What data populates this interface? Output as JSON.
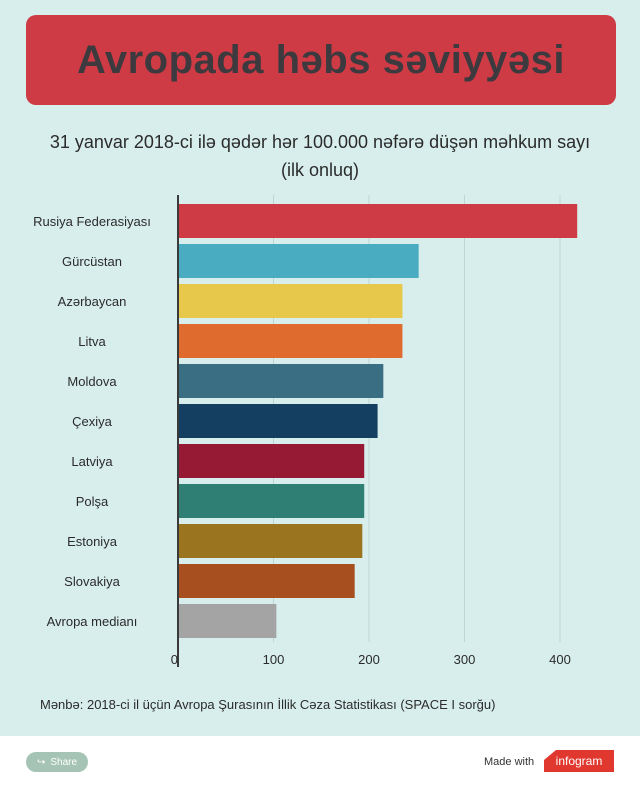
{
  "header": {
    "title": "Avropada həbs səviyyəsi"
  },
  "subtitle": {
    "line1": "31 yanvar 2018-ci ilə qədər hər 100.000 nəfərə düşən məhkum sayı",
    "line2": "(ilk onluq)"
  },
  "chart_data": {
    "type": "bar",
    "orientation": "horizontal",
    "categories": [
      "Rusiya Federasiyası",
      "Gürcüstan",
      "Azərbaycan",
      "Litva",
      "Moldova",
      "Çexiya",
      "Latviya",
      "Polşa",
      "Estoniya",
      "Slovakiya",
      "Avropa medianı"
    ],
    "values": [
      418,
      252,
      235,
      235,
      215,
      209,
      195,
      195,
      193,
      185,
      103
    ],
    "colors": [
      "#cf3b44",
      "#4aacc0",
      "#e8c84a",
      "#e06b2e",
      "#3a6f83",
      "#153f60",
      "#971a35",
      "#2f7f74",
      "#9b7420",
      "#a84f1f",
      "#a4a4a4"
    ],
    "xlim": [
      0,
      440
    ],
    "xticks": [
      0,
      100,
      200,
      300,
      400
    ],
    "grid": true,
    "title": "Avropada həbs səviyyəsi"
  },
  "source": "Mənbə: 2018-ci il üçün Avropa Şurasının İllik Cəza Statistikası (SPACE I sorğu)",
  "footer": {
    "share_label": "Share",
    "made_with": "Made with",
    "brand": "infogram"
  }
}
